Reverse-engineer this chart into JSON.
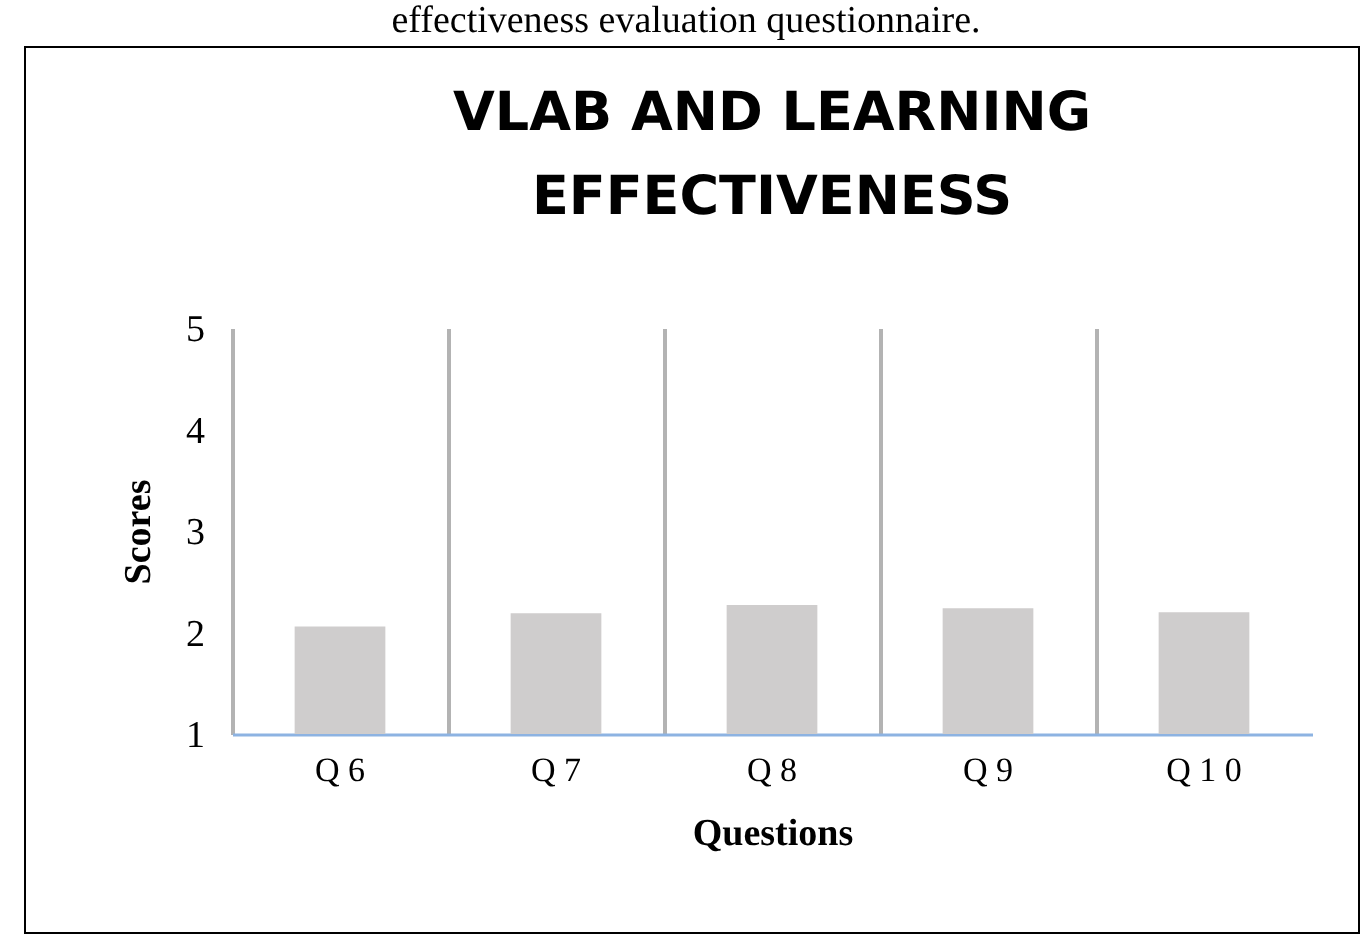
{
  "chart_data": {
    "type": "bar",
    "title": "VLAB AND LEARNING EFFECTIVENESS",
    "xlabel": "Questions",
    "ylabel": "Scores",
    "annotations": [
      "effectiveness evaluation questionnaire."
    ],
    "categories": [
      "Q 6",
      "Q 7",
      "Q 8",
      "Q 9",
      "Q 1 0"
    ],
    "values": [
      2.06,
      2.19,
      2.27,
      2.24,
      2.2
    ],
    "color": "#cfcdcd",
    "ylim": [
      1,
      5
    ],
    "yticks": [
      1,
      2,
      3,
      4,
      5
    ],
    "grid": "x",
    "legend": false
  }
}
